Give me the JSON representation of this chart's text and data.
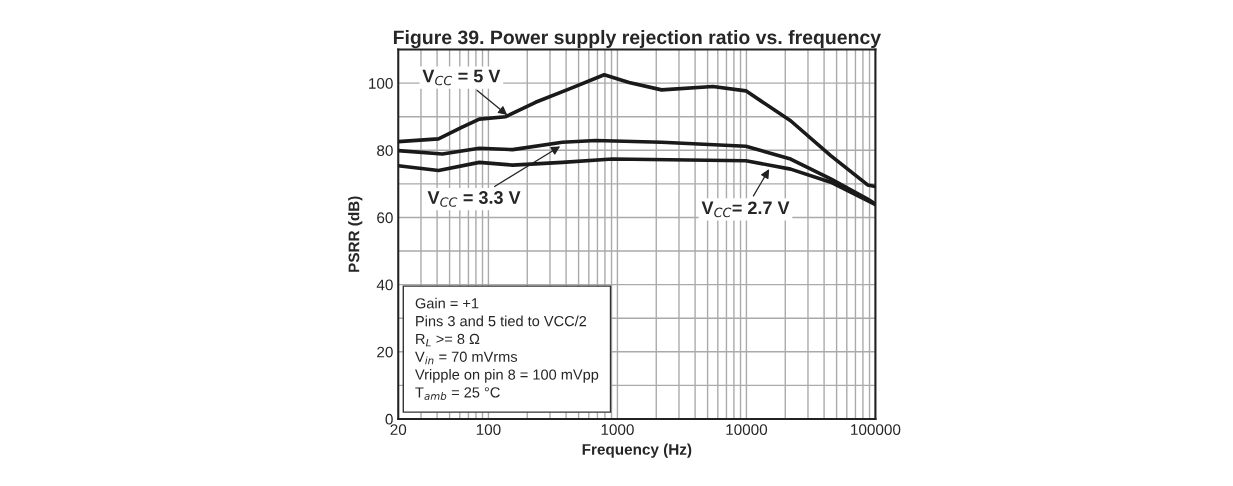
{
  "chart_data": {
    "type": "line",
    "title": "Figure 39. Power supply rejection ratio vs. frequency",
    "xlabel": "Frequency (Hz)",
    "ylabel": "PSRR (dB)",
    "log": "x",
    "grid": true,
    "marker": "none",
    "line_style": "solid",
    "xlim": [
      20,
      100000
    ],
    "xticks": [
      20,
      100,
      1000,
      10000,
      100000
    ],
    "ylim": [
      0,
      110
    ],
    "yticks": [
      0,
      {
        "value": 10,
        "label": null
      },
      20,
      {
        "value": 30,
        "label": null
      },
      40,
      {
        "value": 50,
        "label": null
      },
      60,
      {
        "value": 70,
        "label": null
      },
      80,
      {
        "value": 90,
        "label": null
      },
      100
    ],
    "series": [
      {
        "color": "#1a1a1a",
        "x": [
          20,
          41,
          62,
          85,
          136,
          232,
          420,
          790,
          1230,
          2200,
          5500,
          9900,
          22000,
          45000,
          87000,
          100000
        ],
        "values": [
          82.6,
          83.4,
          86.8,
          89.3,
          90,
          94.3,
          98.2,
          102.5,
          100.2,
          98,
          99,
          97.7,
          88.8,
          78.4,
          69.7,
          69.2
        ]
      },
      {
        "color": "#1a1a1a",
        "x": [
          20,
          44,
          85,
          154,
          374,
          679,
          2200,
          9900,
          22000,
          45000,
          87000,
          100000
        ],
        "values": [
          79.9,
          78.9,
          80.6,
          80.2,
          82.4,
          82.9,
          82.4,
          81.2,
          77.4,
          71.5,
          65.5,
          64
        ]
      },
      {
        "color": "#1a1a1a",
        "x": [
          20,
          41,
          85,
          154,
          374,
          912,
          9900,
          22000,
          45000,
          87000,
          100000
        ],
        "values": [
          75.4,
          74,
          76.4,
          75.6,
          76.4,
          77.4,
          76.9,
          74.4,
          70.5,
          65,
          63.8
        ]
      }
    ],
    "annotations": [
      {
        "text": "V$_{CC}$ = 5 V",
        "x": 140,
        "y": 90.5
      },
      {
        "text": "V$_{CC}$ = 3.3 V",
        "x": 360,
        "y": 81.2
      },
      {
        "text": "V$_{CC}$= 2.7 V",
        "x": 15000,
        "y": 74.4
      },
      "Gain = +1\nPins 3 and 5 tied to VCC/2\nR$_{L}$ >= 8 Ω\nV$_{in}$ = 70 mVrms\nVripple on pin 8 = 100 mVpp\nT$_{amb}$ = 25 °C"
    ]
  }
}
